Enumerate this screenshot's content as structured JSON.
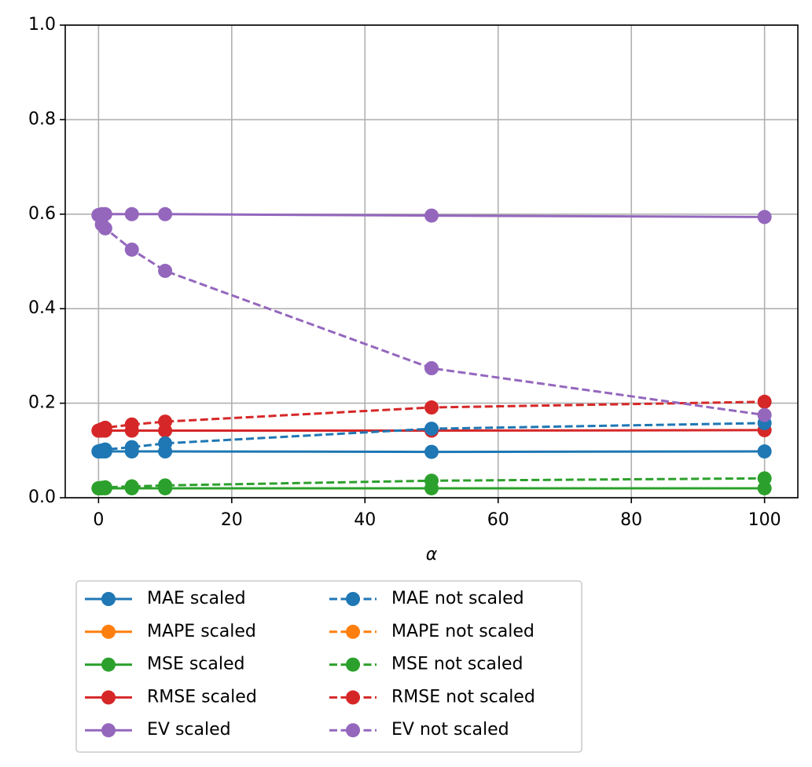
{
  "chart_data": {
    "type": "line",
    "xlabel": "α",
    "x": [
      0,
      0.5,
      1,
      5,
      10,
      50,
      100
    ],
    "xlim": [
      -5,
      105
    ],
    "xticks": [
      0,
      20,
      40,
      60,
      80,
      100
    ],
    "ylim": [
      0,
      1
    ],
    "yticks": [
      {
        "value": 0,
        "label": "0.0"
      },
      0.2,
      0.4,
      0.6,
      0.8,
      {
        "value": 1,
        "label": "1.0"
      }
    ],
    "grid": true,
    "legend": "below",
    "series": [
      {
        "name": "MAE scaled",
        "color": "#1f77b4",
        "linestyle": "solid",
        "values": [
          0.098,
          0.098,
          0.098,
          0.098,
          0.098,
          0.097,
          0.098
        ]
      },
      {
        "name": "MAPE scaled",
        "color": "#ff7f0e",
        "linestyle": "solid",
        "values": [
          null,
          null,
          null,
          null,
          null,
          null,
          null
        ]
      },
      {
        "name": "MSE scaled",
        "color": "#2ca02c",
        "linestyle": "solid",
        "values": [
          0.02,
          0.02,
          0.02,
          0.02,
          0.02,
          0.02,
          0.02
        ]
      },
      {
        "name": "RMSE scaled",
        "color": "#d62728",
        "linestyle": "solid",
        "values": [
          0.142,
          0.142,
          0.142,
          0.142,
          0.142,
          0.142,
          0.143
        ]
      },
      {
        "name": "EV scaled",
        "color": "#9467bd",
        "linestyle": "solid",
        "values": [
          0.598,
          0.6,
          0.6,
          0.6,
          0.6,
          0.597,
          0.594
        ]
      },
      {
        "name": "MAE not scaled",
        "color": "#1f77b4",
        "linestyle": "dashed",
        "values": [
          0.098,
          0.1,
          0.102,
          0.107,
          0.115,
          0.146,
          0.158
        ]
      },
      {
        "name": "MAPE not scaled",
        "color": "#ff7f0e",
        "linestyle": "dashed",
        "values": [
          null,
          null,
          null,
          null,
          null,
          null,
          null
        ]
      },
      {
        "name": "MSE not scaled",
        "color": "#2ca02c",
        "linestyle": "dashed",
        "values": [
          0.02,
          0.021,
          0.022,
          0.024,
          0.026,
          0.036,
          0.041
        ]
      },
      {
        "name": "RMSE not scaled",
        "color": "#d62728",
        "linestyle": "dashed",
        "values": [
          0.142,
          0.145,
          0.148,
          0.155,
          0.161,
          0.191,
          0.203
        ]
      },
      {
        "name": "EV not scaled",
        "color": "#9467bd",
        "linestyle": "dashed",
        "values": [
          0.598,
          0.578,
          0.57,
          0.525,
          0.48,
          0.274,
          0.175
        ]
      }
    ]
  }
}
